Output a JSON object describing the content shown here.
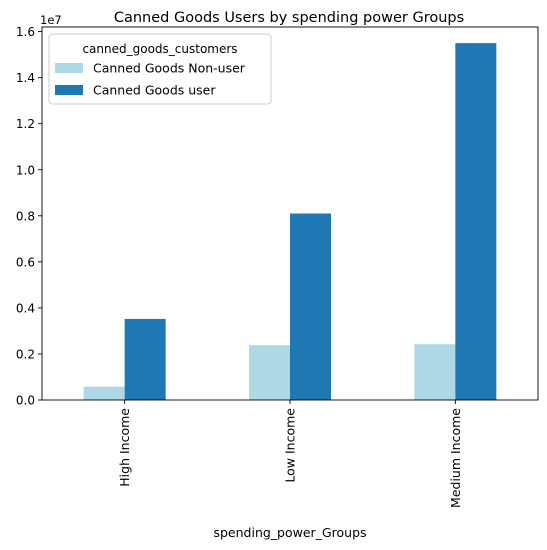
{
  "chart_data": {
    "type": "bar",
    "title": "Canned Goods Users by spending power Groups",
    "xlabel": "spending_power_Groups",
    "ylabel": "",
    "y_offset_label": "1e7",
    "y_scale": 10000000,
    "categories": [
      "High Income",
      "Low Income",
      "Medium Income"
    ],
    "series": [
      {
        "name": "Canned Goods Non-user",
        "color": "#add8e6",
        "values": [
          580000,
          2380000,
          2420000
        ]
      },
      {
        "name": "Canned Goods user",
        "color": "#1f77b4",
        "values": [
          3520000,
          8100000,
          15500000
        ]
      }
    ],
    "ylim": [
      0,
      16200000
    ],
    "y_ticks": [
      0,
      2000000,
      4000000,
      6000000,
      8000000,
      10000000,
      12000000,
      14000000,
      16000000
    ],
    "y_tick_labels": [
      "0.0",
      "0.2",
      "0.4",
      "0.6",
      "0.8",
      "1.0",
      "1.2",
      "1.4",
      "1.6"
    ],
    "legend": {
      "title": "canned_goods_customers",
      "position": "top-left"
    },
    "grid": false
  }
}
